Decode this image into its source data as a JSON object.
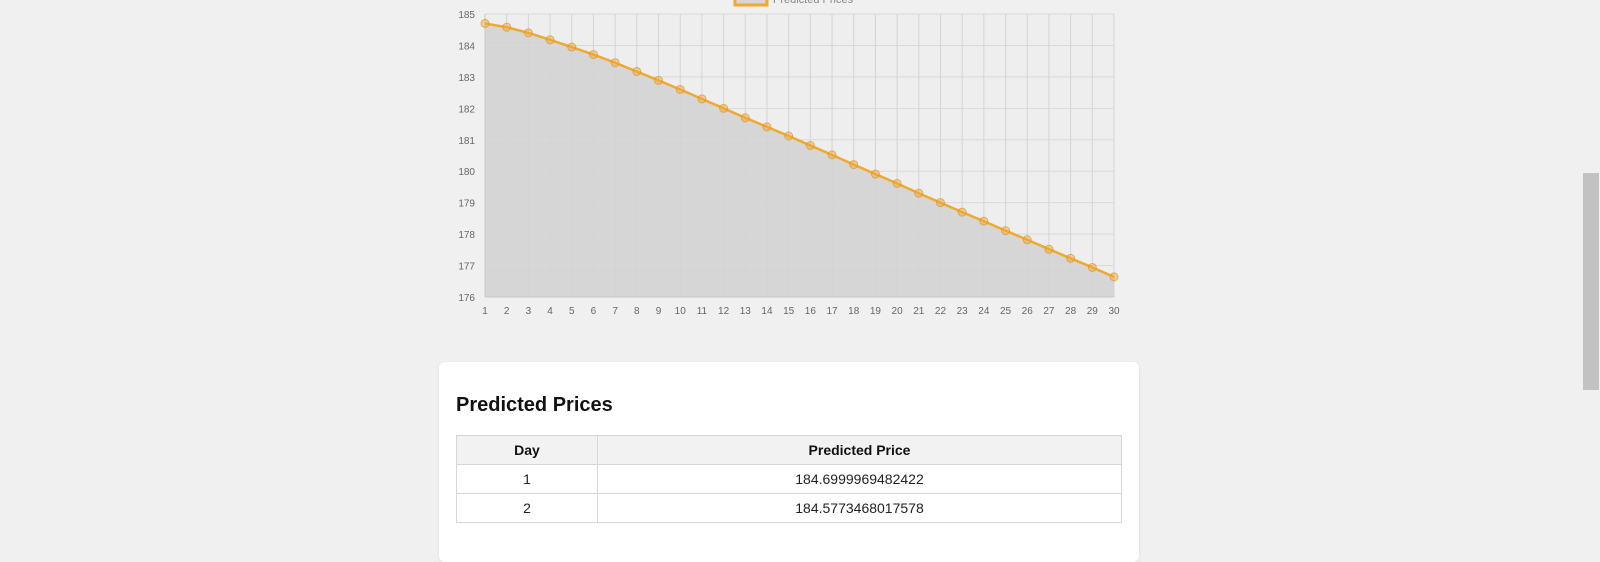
{
  "chart_data": {
    "type": "area",
    "x": [
      1,
      2,
      3,
      4,
      5,
      6,
      7,
      8,
      9,
      10,
      11,
      12,
      13,
      14,
      15,
      16,
      17,
      18,
      19,
      20,
      21,
      22,
      23,
      24,
      25,
      26,
      27,
      28,
      29,
      30
    ],
    "series": [
      {
        "name": "Predicted Prices",
        "values": [
          184.7,
          184.58,
          184.4,
          184.18,
          183.95,
          183.71,
          183.45,
          183.17,
          182.89,
          182.6,
          182.3,
          182.0,
          181.7,
          181.41,
          181.12,
          180.82,
          180.52,
          180.21,
          179.91,
          179.61,
          179.3,
          179.0,
          178.7,
          178.41,
          178.11,
          177.82,
          177.52,
          177.23,
          176.94,
          176.64
        ]
      }
    ],
    "ylim": [
      176,
      185
    ],
    "yticks": [
      176,
      177,
      178,
      179,
      180,
      181,
      182,
      183,
      184,
      185
    ],
    "xticks": [
      1,
      2,
      3,
      4,
      5,
      6,
      7,
      8,
      9,
      10,
      11,
      12,
      13,
      14,
      15,
      16,
      17,
      18,
      19,
      20,
      21,
      22,
      23,
      24,
      25,
      26,
      27,
      28,
      29,
      30
    ],
    "legend_position": "top",
    "grid": true,
    "line_color": "#f0a830",
    "fill_color": "#d6d6d6"
  },
  "table": {
    "title": "Predicted Prices",
    "headers": {
      "day": "Day",
      "price": "Predicted Price"
    },
    "rows": [
      {
        "day": "1",
        "price": "184.6999969482422"
      },
      {
        "day": "2",
        "price": "184.5773468017578"
      }
    ]
  }
}
